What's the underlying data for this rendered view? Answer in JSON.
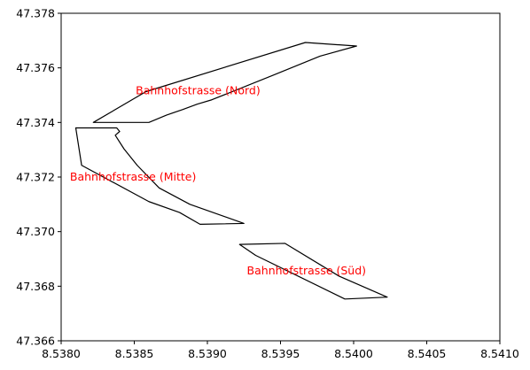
{
  "chart_data": {
    "type": "polygon-map",
    "title": "",
    "xlabel": "",
    "ylabel": "",
    "xlim": [
      8.538,
      8.541
    ],
    "ylim": [
      47.366,
      47.378
    ],
    "grid": false,
    "xticks": [
      8.538,
      8.5385,
      8.539,
      8.5395,
      8.54,
      8.5405,
      8.541
    ],
    "xtick_labels": [
      "8.5380",
      "8.5385",
      "8.5390",
      "8.5395",
      "8.5400",
      "8.5405",
      "8.5410"
    ],
    "yticks": [
      47.366,
      47.368,
      47.37,
      47.372,
      47.374,
      47.376,
      47.378
    ],
    "ytick_labels": [
      "47.366",
      "47.368",
      "47.370",
      "47.372",
      "47.374",
      "47.376",
      "47.378"
    ],
    "polygon_color": "#000000",
    "label_color": "#ff0000",
    "polygons": [
      {
        "name": "Bahnhofstrasse (Nord)",
        "label_pos": [
          8.53851,
          47.37503
        ],
        "points": [
          [
            8.53822,
            47.374
          ],
          [
            8.5386,
            47.374
          ],
          [
            8.53872,
            47.37427
          ],
          [
            8.53883,
            47.37447
          ],
          [
            8.53893,
            47.37467
          ],
          [
            8.53903,
            47.37483
          ],
          [
            8.53945,
            47.37573
          ],
          [
            8.53977,
            47.37643
          ],
          [
            8.54002,
            47.3768
          ],
          [
            8.53967,
            47.37693
          ],
          [
            8.53858,
            47.37513
          ],
          [
            8.53822,
            47.374
          ]
        ]
      },
      {
        "name": "Bahnhofstrasse (Mitte)",
        "label_pos": [
          8.53806,
          47.37187
        ],
        "points": [
          [
            8.5381,
            47.3738
          ],
          [
            8.53838,
            47.3738
          ],
          [
            8.5384,
            47.37367
          ],
          [
            8.53837,
            47.37353
          ],
          [
            8.53843,
            47.37303
          ],
          [
            8.53852,
            47.37243
          ],
          [
            8.53867,
            47.3716
          ],
          [
            8.53888,
            47.371
          ],
          [
            8.53925,
            47.3703
          ],
          [
            8.53895,
            47.37027
          ],
          [
            8.53881,
            47.3707
          ],
          [
            8.5386,
            47.3711
          ],
          [
            8.53814,
            47.37243
          ],
          [
            8.5381,
            47.3738
          ]
        ]
      },
      {
        "name": "Bahnhofstrasse (Süd)",
        "label_pos": [
          8.53927,
          47.36843
        ],
        "points": [
          [
            8.53922,
            47.36953
          ],
          [
            8.53953,
            47.36957
          ],
          [
            8.5399,
            47.36837
          ],
          [
            8.54023,
            47.3676
          ],
          [
            8.53994,
            47.36753
          ],
          [
            8.53933,
            47.36913
          ],
          [
            8.53922,
            47.36953
          ]
        ]
      }
    ]
  }
}
